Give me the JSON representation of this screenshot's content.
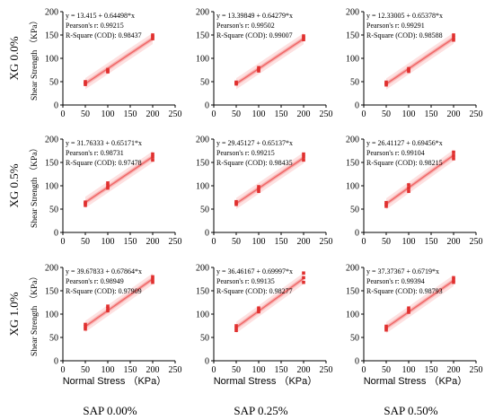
{
  "figure": {
    "row_labels": [
      "XG 0.0%",
      "XG 0.5%",
      "XG 1.0%"
    ],
    "col_labels": [
      "SAP 0.00%",
      "SAP 0.25%",
      "SAP 0.50%"
    ],
    "y_axis_label": "Shear Strength （KPa）",
    "x_axis_label": "Normal Stress （KPa）",
    "colors": {
      "band_outer": "#fde1e1",
      "band_inner": "#f9b9b9",
      "fit_line": "#f06b6b",
      "points": "#e0302f",
      "axis": "#000000"
    }
  },
  "chart_data": [
    {
      "type": "scatter",
      "row": 0,
      "col": 0,
      "x": [
        50,
        50,
        50,
        100,
        100,
        100,
        200,
        200,
        200
      ],
      "y": [
        44,
        47,
        50,
        71,
        73,
        76,
        142,
        146,
        150
      ],
      "fit": {
        "intercept": 13.415,
        "slope": 0.64498
      },
      "equation": "y = 13.415 + 0.64498*x",
      "pearson": "Pearson's r: 0.99215",
      "rsq": "R-Square (COD): 0.98437",
      "xticks": [
        "0",
        "50",
        "100",
        "150",
        "200",
        "250"
      ],
      "yticks": [
        "0",
        "50",
        "100",
        "150",
        "200"
      ],
      "xlim": [
        0,
        250
      ],
      "ylim": [
        0,
        200
      ]
    },
    {
      "type": "scatter",
      "row": 0,
      "col": 1,
      "x": [
        50,
        50,
        50,
        100,
        100,
        100,
        200,
        200,
        200
      ],
      "y": [
        45,
        47,
        49,
        73,
        76,
        80,
        140,
        144,
        148
      ],
      "fit": {
        "intercept": 13.39849,
        "slope": 0.64279
      },
      "equation": "y = 13.39849 + 0.64279*x",
      "pearson": "Pearson's r: 0.99502",
      "rsq": "R-Square (COD): 0.99007",
      "xticks": [
        "0",
        "50",
        "100",
        "150",
        "200",
        "250"
      ],
      "yticks": [
        "0",
        "50",
        "100",
        "150",
        "200"
      ],
      "xlim": [
        0,
        250
      ],
      "ylim": [
        0,
        200
      ]
    },
    {
      "type": "scatter",
      "row": 0,
      "col": 2,
      "x": [
        50,
        50,
        50,
        100,
        100,
        100,
        200,
        200,
        200
      ],
      "y": [
        43,
        46,
        49,
        72,
        75,
        78,
        139,
        144,
        150
      ],
      "fit": {
        "intercept": 12.33005,
        "slope": 0.65378
      },
      "equation": "y = 12.33005 + 0.65378*x",
      "pearson": "Pearson's r: 0.99291",
      "rsq": "R-Square (COD): 0.98588",
      "xticks": [
        "0",
        "50",
        "100",
        "150",
        "200",
        "250"
      ],
      "yticks": [
        "0",
        "50",
        "100",
        "150",
        "200"
      ],
      "xlim": [
        0,
        250
      ],
      "ylim": [
        0,
        200
      ]
    },
    {
      "type": "scatter",
      "row": 1,
      "col": 0,
      "x": [
        50,
        50,
        50,
        100,
        100,
        100,
        200,
        200,
        200
      ],
      "y": [
        58,
        62,
        65,
        95,
        100,
        106,
        155,
        162,
        168
      ],
      "fit": {
        "intercept": 31.76333,
        "slope": 0.65171
      },
      "equation": "y = 31.76333 + 0.65171*x",
      "pearson": "Pearson's r: 0.98731",
      "rsq": "R-Square (COD): 0.97478",
      "xticks": [
        "0",
        "50",
        "100",
        "150",
        "200",
        "250"
      ],
      "yticks": [
        "0",
        "50",
        "100",
        "150",
        "200"
      ],
      "xlim": [
        0,
        250
      ],
      "ylim": [
        0,
        200
      ]
    },
    {
      "type": "scatter",
      "row": 1,
      "col": 1,
      "x": [
        50,
        50,
        50,
        100,
        100,
        100,
        200,
        200,
        200
      ],
      "y": [
        60,
        63,
        66,
        88,
        93,
        98,
        155,
        162,
        168
      ],
      "fit": {
        "intercept": 29.45127,
        "slope": 0.65137
      },
      "equation": "y = 29.45127 + 0.65137*x",
      "pearson": "Pearson's r: 0.99215",
      "rsq": "R-Square (COD): 0.98435",
      "xticks": [
        "0",
        "50",
        "100",
        "150",
        "200",
        "250"
      ],
      "yticks": [
        "0",
        "50",
        "100",
        "150",
        "200"
      ],
      "xlim": [
        0,
        250
      ],
      "ylim": [
        0,
        200
      ]
    },
    {
      "type": "scatter",
      "row": 1,
      "col": 2,
      "x": [
        50,
        50,
        50,
        100,
        100,
        100,
        200,
        200,
        200
      ],
      "y": [
        56,
        60,
        64,
        88,
        95,
        102,
        158,
        165,
        172
      ],
      "fit": {
        "intercept": 26.41127,
        "slope": 0.69456
      },
      "equation": "y = 26.41127 + 0.69456*x",
      "pearson": "Pearson's r: 0.99104",
      "rsq": "R-Square (COD): 0.98215",
      "xticks": [
        "0",
        "50",
        "100",
        "150",
        "200",
        "250"
      ],
      "yticks": [
        "0",
        "50",
        "100",
        "150",
        "200"
      ],
      "xlim": [
        0,
        250
      ],
      "ylim": [
        0,
        200
      ]
    },
    {
      "type": "scatter",
      "row": 2,
      "col": 0,
      "x": [
        50,
        50,
        50,
        100,
        100,
        100,
        200,
        200,
        200
      ],
      "y": [
        68,
        73,
        78,
        107,
        112,
        117,
        168,
        174,
        180
      ],
      "fit": {
        "intercept": 39.67833,
        "slope": 0.67864
      },
      "equation": "y = 39.67833 + 0.67864*x",
      "pearson": "Pearson's r: 0.98949",
      "rsq": "R-Square (COD): 0.97909",
      "xticks": [
        "0",
        "50",
        "100",
        "150",
        "200",
        "250"
      ],
      "yticks": [
        "0",
        "50",
        "100",
        "150",
        "200"
      ],
      "xlim": [
        0,
        250
      ],
      "ylim": [
        0,
        200
      ]
    },
    {
      "type": "scatter",
      "row": 2,
      "col": 1,
      "x": [
        50,
        50,
        50,
        100,
        100,
        100,
        200,
        200,
        200
      ],
      "y": [
        65,
        70,
        75,
        105,
        109,
        113,
        168,
        178,
        188
      ],
      "fit": {
        "intercept": 36.46167,
        "slope": 0.69997
      },
      "equation": "y = 36.46167 + 0.69997*x",
      "pearson": "Pearson's r: 0.99135",
      "rsq": "R-Square (COD): 0.98277",
      "xticks": [
        "0",
        "50",
        "100",
        "150",
        "200",
        "250"
      ],
      "yticks": [
        "0",
        "50",
        "100",
        "150",
        "200"
      ],
      "xlim": [
        0,
        250
      ],
      "ylim": [
        0,
        200
      ]
    },
    {
      "type": "scatter",
      "row": 2,
      "col": 2,
      "x": [
        50,
        50,
        50,
        100,
        100,
        100,
        200,
        200,
        200
      ],
      "y": [
        66,
        70,
        74,
        104,
        108,
        113,
        168,
        173,
        178
      ],
      "fit": {
        "intercept": 37.37367,
        "slope": 0.6719
      },
      "equation": "y = 37.37367 + 0.6719*x",
      "pearson": "Pearson's r: 0.99394",
      "rsq": "R-Square (COD): 0.98793",
      "xticks": [
        "0",
        "50",
        "100",
        "150",
        "200",
        "250"
      ],
      "yticks": [
        "0",
        "50",
        "100",
        "150",
        "200"
      ],
      "xlim": [
        0,
        250
      ],
      "ylim": [
        0,
        200
      ]
    }
  ]
}
